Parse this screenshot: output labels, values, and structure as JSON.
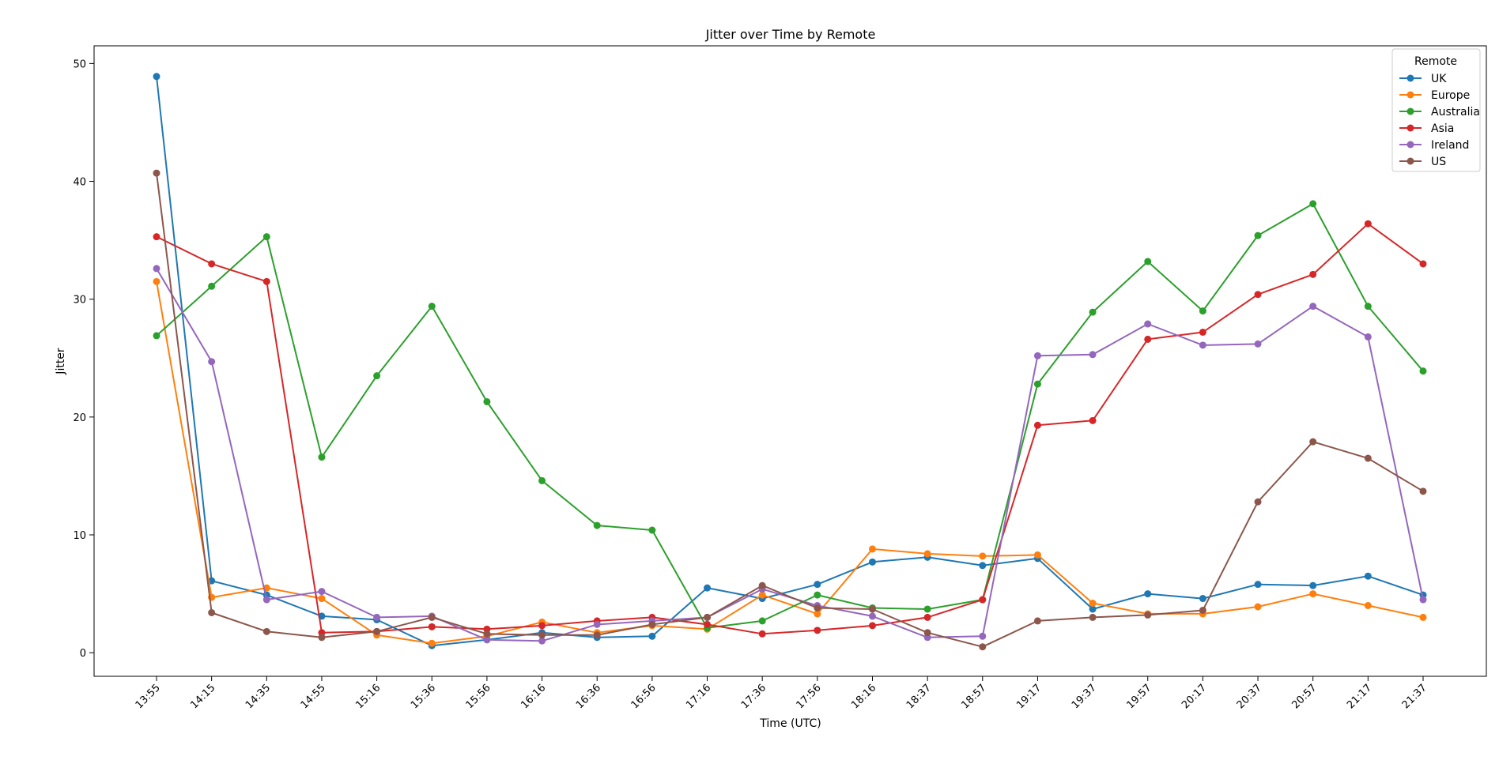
{
  "chart_data": {
    "type": "line",
    "title": "Jitter over Time by Remote",
    "xlabel": "Time (UTC)",
    "ylabel": "Jitter",
    "ylim": [
      -2,
      51.5
    ],
    "yticks": [
      0,
      10,
      20,
      30,
      40,
      50
    ],
    "grid": false,
    "legend": {
      "title": "Remote",
      "placement": "top-right"
    },
    "x": [
      "13:55",
      "14:15",
      "14:35",
      "14:55",
      "15:16",
      "15:36",
      "15:56",
      "16:16",
      "16:36",
      "16:56",
      "17:16",
      "17:36",
      "17:56",
      "18:16",
      "18:37",
      "18:57",
      "19:17",
      "19:37",
      "19:57",
      "20:17",
      "20:37",
      "20:57",
      "21:17",
      "21:37"
    ],
    "series": [
      {
        "name": "UK",
        "color": "#1f77b4",
        "values": [
          48.9,
          6.1,
          4.9,
          3.1,
          2.8,
          0.6,
          1.1,
          1.7,
          1.3,
          1.4,
          5.5,
          4.6,
          5.8,
          7.7,
          8.1,
          7.4,
          8.0,
          3.7,
          5.0,
          4.6,
          5.8,
          5.7,
          6.5,
          4.9
        ]
      },
      {
        "name": "Europe",
        "color": "#ff7f0e",
        "values": [
          31.5,
          4.7,
          5.5,
          4.6,
          1.5,
          0.8,
          1.4,
          2.6,
          1.7,
          2.3,
          2.0,
          4.9,
          3.3,
          8.8,
          8.4,
          8.2,
          8.3,
          4.2,
          3.3,
          3.3,
          3.9,
          5.0,
          4.0,
          3.0
        ]
      },
      {
        "name": "Australia",
        "color": "#2ca02c",
        "values": [
          26.9,
          31.1,
          35.3,
          16.6,
          23.5,
          29.4,
          21.3,
          14.6,
          10.8,
          10.4,
          2.1,
          2.7,
          4.9,
          3.8,
          3.7,
          4.5,
          22.8,
          28.9,
          33.2,
          29.0,
          35.4,
          38.1,
          29.4,
          23.9
        ]
      },
      {
        "name": "Asia",
        "color": "#d62728",
        "values": [
          35.3,
          33.0,
          31.5,
          1.7,
          1.8,
          2.2,
          2.0,
          2.3,
          2.7,
          3.0,
          2.4,
          1.6,
          1.9,
          2.3,
          3.0,
          4.5,
          19.3,
          19.7,
          26.6,
          27.2,
          30.4,
          32.1,
          36.4,
          33.0
        ]
      },
      {
        "name": "Ireland",
        "color": "#9467bd",
        "values": [
          32.6,
          24.7,
          4.5,
          5.2,
          3.0,
          3.1,
          1.1,
          1.0,
          2.4,
          2.7,
          3.0,
          5.4,
          4.0,
          3.1,
          1.3,
          1.4,
          25.2,
          25.3,
          27.9,
          26.1,
          26.2,
          29.4,
          26.8,
          4.5
        ]
      },
      {
        "name": "US",
        "color": "#8c564b",
        "values": [
          40.7,
          3.4,
          1.8,
          1.3,
          1.8,
          3.0,
          1.6,
          1.5,
          1.5,
          2.4,
          3.0,
          5.7,
          3.8,
          3.7,
          1.7,
          0.5,
          2.7,
          3.0,
          3.2,
          3.6,
          12.8,
          17.9,
          16.5,
          13.7
        ]
      }
    ]
  }
}
